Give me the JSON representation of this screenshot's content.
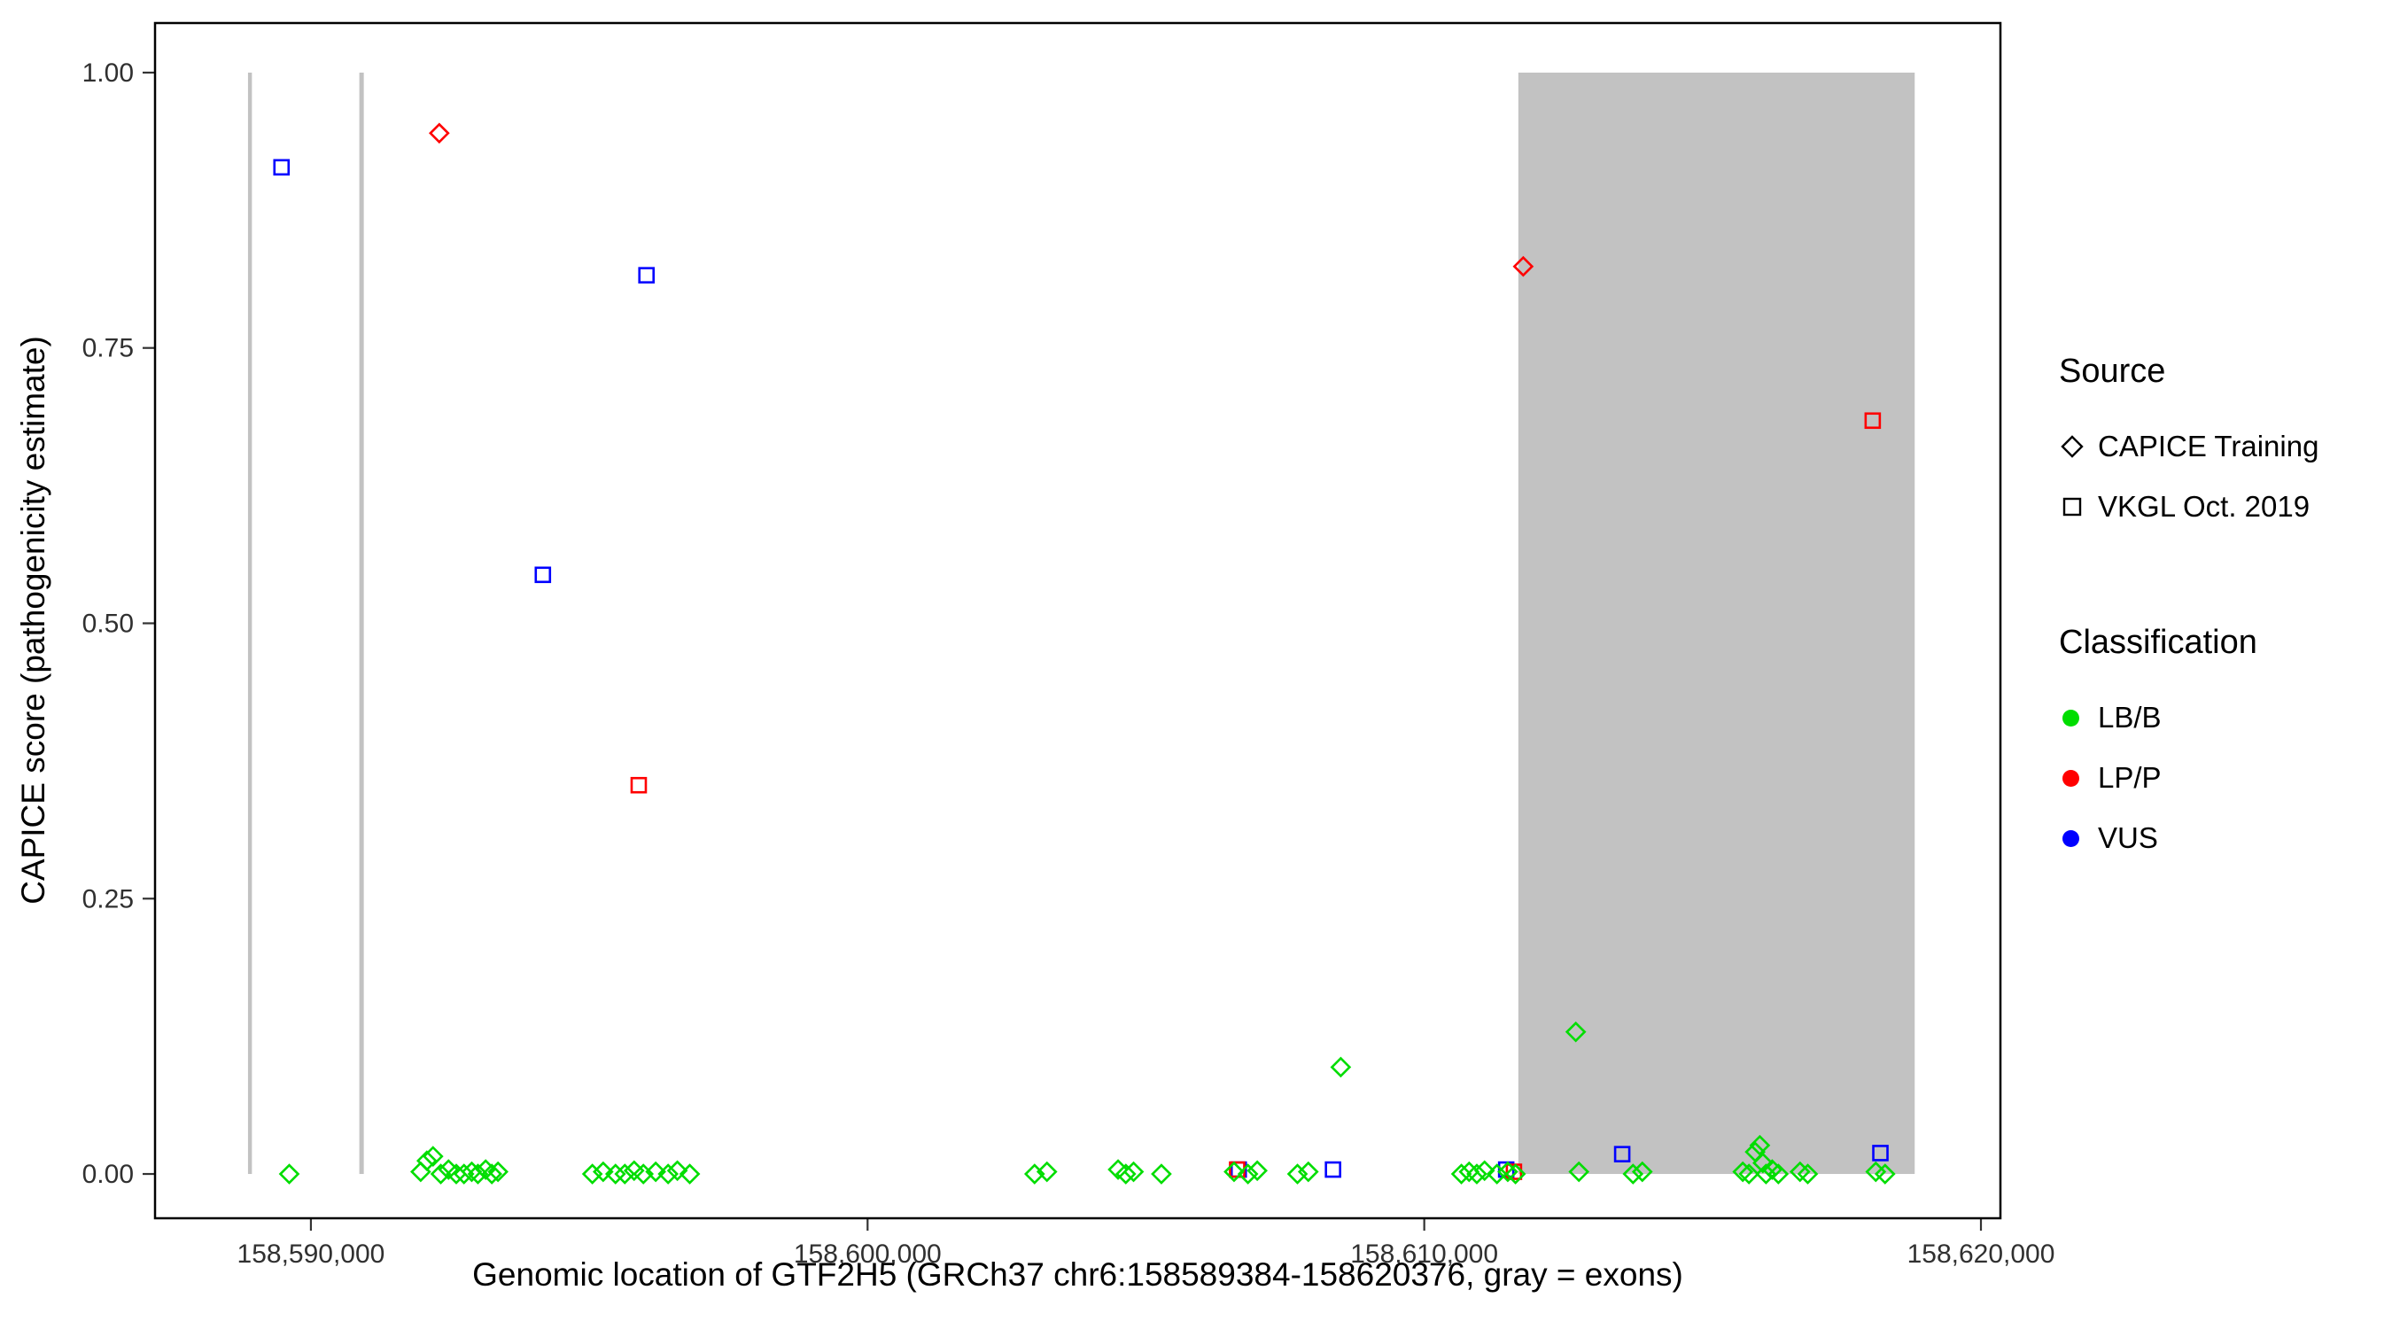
{
  "chart_data": {
    "type": "scatter",
    "title": "",
    "xlabel": "Genomic location of GTF2H5 (GRCh37 chr6:158589384-158620376, gray = exons)",
    "ylabel": "CAPICE score (pathogenicity estimate)",
    "xlim": [
      158587200,
      158620350
    ],
    "ylim": [
      -0.0402,
      1.045
    ],
    "grid": false,
    "x_ticks": [
      {
        "value": 158590000,
        "label": "158,590,000"
      },
      {
        "value": 158600000,
        "label": "158,600,000"
      },
      {
        "value": 158610000,
        "label": "158,610,000"
      },
      {
        "value": 158620000,
        "label": "158,620,000"
      }
    ],
    "y_ticks": [
      {
        "value": 0,
        "label": "0.00"
      },
      {
        "value": 0.25,
        "label": "0.25"
      },
      {
        "value": 0.5,
        "label": "0.50"
      },
      {
        "value": 0.75,
        "label": "0.75"
      },
      {
        "value": 1,
        "label": "1.00"
      }
    ],
    "exons": [
      [
        158588870,
        158588940
      ],
      [
        158590870,
        158590950
      ],
      [
        158611690,
        158618810
      ]
    ],
    "exon_color": "#C2C2C2",
    "colors": {
      "LB/B": "#00DD00",
      "LP/P": "#FF0000",
      "VUS": "#0000FF"
    },
    "legend": {
      "source": {
        "title": "Source",
        "items": [
          {
            "shape": "diamond",
            "label": "CAPICE Training"
          },
          {
            "shape": "square",
            "label": "VKGL Oct. 2019"
          }
        ]
      },
      "classification": {
        "title": "Classification",
        "items": [
          {
            "class": "LB/B",
            "label": "LB/B"
          },
          {
            "class": "LP/P",
            "label": "LP/P"
          },
          {
            "class": "VUS",
            "label": "VUS"
          }
        ]
      }
    },
    "points": [
      [
        158589472,
        0.914,
        "VUS",
        "vkgl"
      ],
      [
        158592306,
        0.945,
        "LP/P",
        "training"
      ],
      [
        158594167,
        0.544,
        "VUS",
        "vkgl"
      ],
      [
        158595889,
        0.353,
        "LP/P",
        "vkgl"
      ],
      [
        158596028,
        0.816,
        "VUS",
        "vkgl"
      ],
      [
        158608500,
        0.097,
        "LB/B",
        "training"
      ],
      [
        158611778,
        0.824,
        "LP/P",
        "training"
      ],
      [
        158612722,
        0.129,
        "LB/B",
        "training"
      ],
      [
        158618056,
        0.684,
        "LP/P",
        "vkgl"
      ],
      [
        158606667,
        0.004,
        "VUS",
        "vkgl"
      ],
      [
        158608361,
        0.004,
        "VUS",
        "vkgl"
      ],
      [
        158611472,
        0.004,
        "VUS",
        "vkgl"
      ],
      [
        158613556,
        0.018,
        "VUS",
        "vkgl"
      ],
      [
        158618194,
        0.019,
        "VUS",
        "vkgl"
      ],
      [
        158606639,
        0.004,
        "LP/P",
        "vkgl"
      ],
      [
        158611611,
        0.002,
        "LP/P",
        "vkgl"
      ],
      [
        158589611,
        0,
        "LB/B",
        "training"
      ],
      [
        158591972,
        0.002,
        "LB/B",
        "training"
      ],
      [
        158592083,
        0.012,
        "LB/B",
        "training"
      ],
      [
        158592194,
        0.016,
        "LB/B",
        "training"
      ],
      [
        158592333,
        0,
        "LB/B",
        "training"
      ],
      [
        158592472,
        0.004,
        "LB/B",
        "training"
      ],
      [
        158592611,
        0,
        "LB/B",
        "training"
      ],
      [
        158592750,
        0,
        "LB/B",
        "training"
      ],
      [
        158592889,
        0.002,
        "LB/B",
        "training"
      ],
      [
        158593000,
        0,
        "LB/B",
        "training"
      ],
      [
        158593139,
        0.004,
        "LB/B",
        "training"
      ],
      [
        158593250,
        0,
        "LB/B",
        "training"
      ],
      [
        158593361,
        0.002,
        "LB/B",
        "training"
      ],
      [
        158595056,
        0,
        "LB/B",
        "training"
      ],
      [
        158595250,
        0.002,
        "LB/B",
        "training"
      ],
      [
        158595472,
        0,
        "LB/B",
        "training"
      ],
      [
        158595639,
        0,
        "LB/B",
        "training"
      ],
      [
        158595806,
        0.003,
        "LB/B",
        "training"
      ],
      [
        158595972,
        0,
        "LB/B",
        "training"
      ],
      [
        158596194,
        0.002,
        "LB/B",
        "training"
      ],
      [
        158596417,
        0,
        "LB/B",
        "training"
      ],
      [
        158596583,
        0.003,
        "LB/B",
        "training"
      ],
      [
        158596806,
        0,
        "LB/B",
        "training"
      ],
      [
        158603000,
        0,
        "LB/B",
        "training"
      ],
      [
        158603222,
        0.002,
        "LB/B",
        "training"
      ],
      [
        158604500,
        0.004,
        "LB/B",
        "training"
      ],
      [
        158604639,
        0,
        "LB/B",
        "training"
      ],
      [
        158604778,
        0.002,
        "LB/B",
        "training"
      ],
      [
        158605278,
        0,
        "LB/B",
        "training"
      ],
      [
        158606583,
        0.002,
        "LB/B",
        "training"
      ],
      [
        158606833,
        0,
        "LB/B",
        "training"
      ],
      [
        158607000,
        0.003,
        "LB/B",
        "training"
      ],
      [
        158607722,
        0,
        "LB/B",
        "training"
      ],
      [
        158607917,
        0.002,
        "LB/B",
        "training"
      ],
      [
        158610667,
        0,
        "LB/B",
        "training"
      ],
      [
        158610806,
        0.002,
        "LB/B",
        "training"
      ],
      [
        158610944,
        0,
        "LB/B",
        "training"
      ],
      [
        158611083,
        0.003,
        "LB/B",
        "training"
      ],
      [
        158611306,
        0,
        "LB/B",
        "training"
      ],
      [
        158611500,
        0.002,
        "LB/B",
        "training"
      ],
      [
        158611639,
        0,
        "LB/B",
        "training"
      ],
      [
        158612778,
        0.002,
        "LB/B",
        "training"
      ],
      [
        158613750,
        0,
        "LB/B",
        "training"
      ],
      [
        158613917,
        0.002,
        "LB/B",
        "training"
      ],
      [
        158615722,
        0.002,
        "LB/B",
        "training"
      ],
      [
        158615833,
        0,
        "LB/B",
        "training"
      ],
      [
        158615944,
        0.02,
        "LB/B",
        "training"
      ],
      [
        158616028,
        0.026,
        "LB/B",
        "training"
      ],
      [
        158616083,
        0.01,
        "LB/B",
        "training"
      ],
      [
        158616139,
        0,
        "LB/B",
        "training"
      ],
      [
        158616250,
        0.004,
        "LB/B",
        "training"
      ],
      [
        158616361,
        0,
        "LB/B",
        "training"
      ],
      [
        158616750,
        0.002,
        "LB/B",
        "training"
      ],
      [
        158616889,
        0,
        "LB/B",
        "training"
      ],
      [
        158618111,
        0.002,
        "LB/B",
        "training"
      ],
      [
        158618278,
        0,
        "LB/B",
        "training"
      ]
    ]
  }
}
